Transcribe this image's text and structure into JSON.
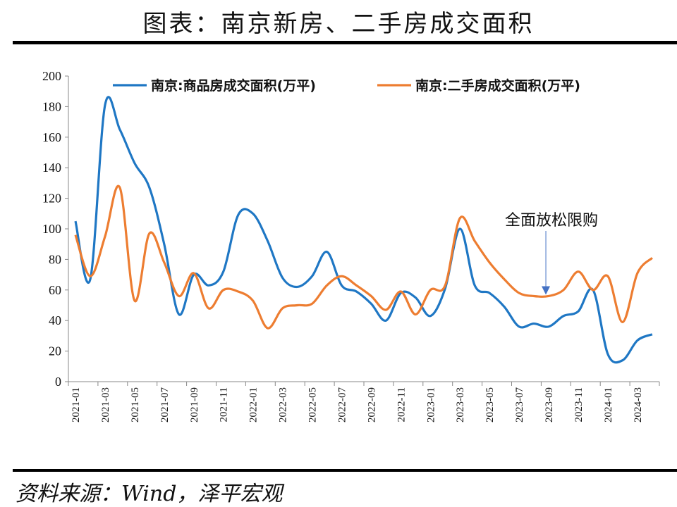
{
  "header": {
    "title": "图表：南京新房、二手房成交面积",
    "source": "资料来源：Wind，泽平宏观"
  },
  "chart_data": {
    "type": "line",
    "title": "图表：南京新房、二手房成交面积",
    "xlabel": "",
    "ylabel": "",
    "ylim": [
      0,
      200
    ],
    "yticks": [
      0,
      20,
      40,
      60,
      80,
      100,
      120,
      140,
      160,
      180,
      200
    ],
    "x": [
      "2021-01",
      "2021-02",
      "2021-03",
      "2021-04",
      "2021-05",
      "2021-06",
      "2021-07",
      "2021-08",
      "2021-09",
      "2021-10",
      "2021-11",
      "2021-12",
      "2022-01",
      "2022-02",
      "2022-03",
      "2022-04",
      "2022-05",
      "2022-06",
      "2022-07",
      "2022-08",
      "2022-09",
      "2022-10",
      "2022-11",
      "2022-12",
      "2023-01",
      "2023-02",
      "2023-03",
      "2023-04",
      "2023-05",
      "2023-06",
      "2023-07",
      "2023-08",
      "2023-09",
      "2023-10",
      "2023-11",
      "2023-12",
      "2024-01",
      "2024-02",
      "2024-03",
      "2024-04"
    ],
    "xtick_labels": [
      "2021-01",
      "2021-03",
      "2021-05",
      "2021-07",
      "2021-09",
      "2021-11",
      "2022-01",
      "2022-03",
      "2022-05",
      "2022-07",
      "2022-09",
      "2022-11",
      "2023-01",
      "2023-03",
      "2023-05",
      "2023-07",
      "2023-09",
      "2023-11",
      "2024-01",
      "2024-03"
    ],
    "series": [
      {
        "name": "南京:商品房成交面积(万平)",
        "color": "#1f77c4",
        "values": [
          105,
          67,
          181,
          165,
          143,
          127,
          90,
          44,
          70,
          63,
          72,
          109,
          110,
          92,
          68,
          62,
          69,
          85,
          63,
          59,
          51,
          40,
          58,
          55,
          43,
          61,
          100,
          63,
          58,
          49,
          36,
          38,
          36,
          43,
          46,
          60,
          18,
          14,
          27,
          31
        ]
      },
      {
        "name": "南京:二手房成交面积(万平)",
        "color": "#ed7d31",
        "values": [
          96,
          69,
          95,
          127,
          53,
          97,
          78,
          56,
          71,
          48,
          60,
          59,
          53,
          35,
          48,
          50,
          51,
          63,
          69,
          63,
          56,
          47,
          59,
          44,
          60,
          63,
          107,
          92,
          78,
          67,
          58,
          56,
          56,
          60,
          72,
          60,
          69,
          39,
          71,
          81
        ]
      }
    ],
    "legend": "top",
    "grid": false,
    "annotations": [
      {
        "text": "全面放松限购",
        "x": "2023-09",
        "series": 1,
        "arrow_color": "#4472c4"
      }
    ]
  }
}
